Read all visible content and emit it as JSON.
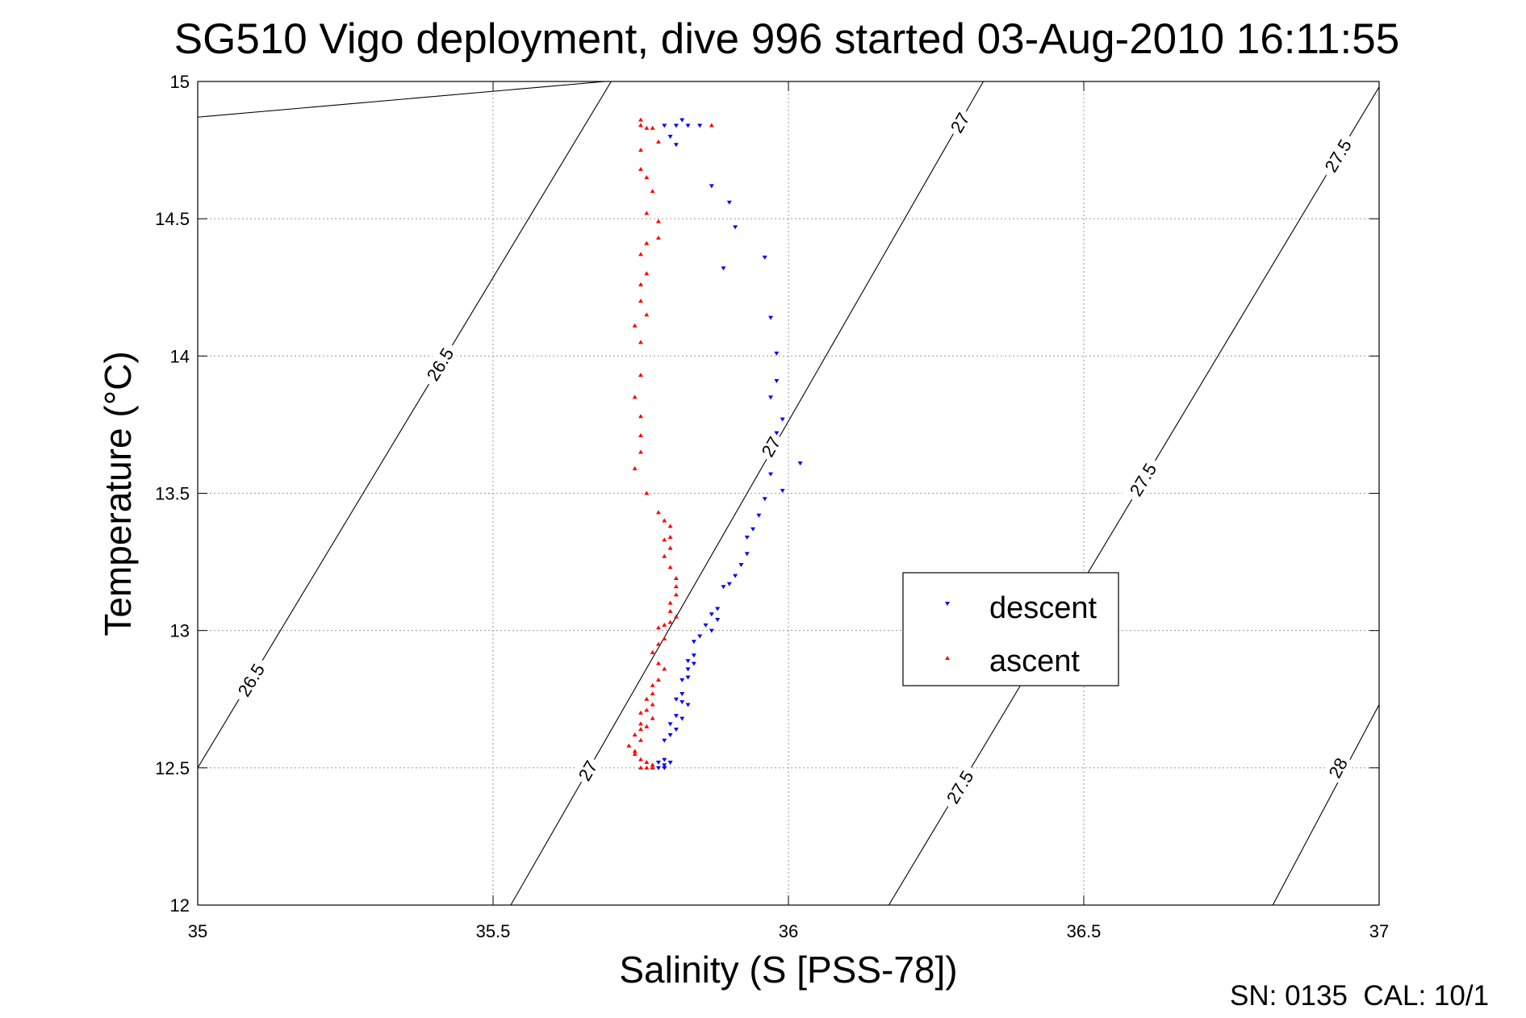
{
  "chart_data": {
    "type": "scatter",
    "title": "SG510 Vigo deployment, dive 996 started 03-Aug-2010 16:11:55",
    "xlabel": "Salinity (S [PSS-78])",
    "ylabel": "Temperature (°C)",
    "xlim": [
      35,
      37
    ],
    "ylim": [
      12,
      15
    ],
    "xticks": [
      35,
      35.5,
      36,
      36.5,
      37
    ],
    "xtick_labels": [
      "35",
      "35.5",
      "36",
      "36.5",
      "37"
    ],
    "yticks": [
      12,
      12.5,
      13,
      13.5,
      14,
      14.5,
      15
    ],
    "ytick_labels": [
      "12",
      "12.5",
      "13",
      "13.5",
      "14",
      "14.5",
      "15"
    ],
    "grid": true,
    "legend_position": "center-right",
    "footer": "SN: 0135  CAL: 10/1",
    "colors": {
      "descent": "#0000ff",
      "ascent": "#ff0000",
      "axis": "#000000",
      "grid": "#9a9a9a"
    },
    "contours": [
      {
        "label": "26.5",
        "x": [
          35,
          35.69
        ],
        "y": [
          14.87,
          15
        ],
        "labels_at": []
      },
      {
        "label": "26.5",
        "x": [
          35,
          35.7
        ],
        "y": [
          12.5,
          15
        ],
        "labels_at": [
          {
            "x": 35.41,
            "y": 13.97
          },
          {
            "x": 35.09,
            "y": 12.82
          }
        ]
      },
      {
        "label": "27",
        "x": [
          35.53,
          36.33
        ],
        "y": [
          12,
          15
        ],
        "labels_at": [
          {
            "x": 35.66,
            "y": 12.49
          },
          {
            "x": 35.97,
            "y": 13.67
          },
          {
            "x": 36.29,
            "y": 14.85
          }
        ]
      },
      {
        "label": "27.5",
        "x": [
          36.17,
          37
        ],
        "y": [
          12,
          14.98
        ],
        "labels_at": [
          {
            "x": 36.29,
            "y": 12.43
          },
          {
            "x": 36.6,
            "y": 13.55
          },
          {
            "x": 36.93,
            "y": 14.73
          }
        ]
      },
      {
        "label": "28",
        "x": [
          36.82,
          37
        ],
        "y": [
          12,
          12.73
        ],
        "labels_at": [
          {
            "x": 36.93,
            "y": 12.5
          }
        ]
      }
    ],
    "series": [
      {
        "name": "descent",
        "marker": "triangle-down",
        "x": [
          35.79,
          35.82,
          35.81,
          35.83,
          35.85,
          35.8,
          35.81,
          35.87,
          35.9,
          35.91,
          35.89,
          35.96,
          35.97,
          35.98,
          35.98,
          35.97,
          35.99,
          35.98,
          36.02,
          35.97,
          35.99,
          35.96,
          35.95,
          35.94,
          35.93,
          35.93,
          35.92,
          35.91,
          35.9,
          35.89,
          35.88,
          35.87,
          35.88,
          35.86,
          35.87,
          35.85,
          35.84,
          35.84,
          35.83,
          35.84,
          35.83,
          35.83,
          35.82,
          35.82,
          35.81,
          35.82,
          35.83,
          35.81,
          35.82,
          35.8,
          35.81,
          35.8,
          35.79,
          35.79,
          35.8,
          35.78,
          35.79,
          35.8,
          35.78,
          35.79
        ],
        "y": [
          14.84,
          14.86,
          14.84,
          14.84,
          14.84,
          14.8,
          14.77,
          14.62,
          14.56,
          14.47,
          14.32,
          14.36,
          14.14,
          14.01,
          13.91,
          13.85,
          13.77,
          13.72,
          13.61,
          13.57,
          13.51,
          13.48,
          13.42,
          13.37,
          13.34,
          13.28,
          13.24,
          13.2,
          13.17,
          13.16,
          13.08,
          13.06,
          13.04,
          13.02,
          13.0,
          12.98,
          12.96,
          12.91,
          12.89,
          12.88,
          12.86,
          12.83,
          12.82,
          12.77,
          12.75,
          12.74,
          12.73,
          12.69,
          12.68,
          12.66,
          12.64,
          12.62,
          12.6,
          12.53,
          12.52,
          12.52,
          12.51,
          12.52,
          12.5,
          12.5
        ]
      },
      {
        "name": "ascent",
        "marker": "triangle-up",
        "x": [
          35.87,
          35.75,
          35.75,
          35.76,
          35.77,
          35.78,
          35.75,
          35.75,
          35.76,
          35.77,
          35.76,
          35.78,
          35.78,
          35.76,
          35.75,
          35.76,
          35.75,
          35.75,
          35.76,
          35.74,
          35.75,
          35.75,
          35.74,
          35.75,
          35.75,
          35.75,
          35.74,
          35.76,
          35.78,
          35.79,
          35.8,
          35.8,
          35.79,
          35.8,
          35.79,
          35.8,
          35.81,
          35.81,
          35.81,
          35.8,
          35.8,
          35.81,
          35.8,
          35.79,
          35.78,
          35.79,
          35.78,
          35.77,
          35.78,
          35.79,
          35.78,
          35.77,
          35.77,
          35.76,
          35.77,
          35.76,
          35.75,
          35.77,
          35.75,
          35.76,
          35.75,
          35.74,
          35.75,
          35.73,
          35.74,
          35.74,
          35.75,
          35.76,
          35.77,
          35.77,
          35.76,
          35.75
        ],
        "y": [
          14.84,
          14.86,
          14.84,
          14.83,
          14.83,
          14.78,
          14.75,
          14.68,
          14.65,
          14.6,
          14.52,
          14.49,
          14.43,
          14.41,
          14.37,
          14.3,
          14.26,
          14.2,
          14.15,
          14.11,
          14.05,
          13.93,
          13.85,
          13.78,
          13.71,
          13.65,
          13.59,
          13.5,
          13.43,
          13.4,
          13.38,
          13.34,
          13.33,
          13.3,
          13.27,
          13.23,
          13.19,
          13.16,
          13.13,
          13.1,
          13.07,
          13.05,
          13.03,
          13.02,
          13.01,
          12.97,
          12.95,
          12.92,
          12.88,
          12.86,
          12.82,
          12.8,
          12.77,
          12.75,
          12.73,
          12.71,
          12.7,
          12.68,
          12.66,
          12.65,
          12.64,
          12.62,
          12.6,
          12.58,
          12.56,
          12.55,
          12.53,
          12.52,
          12.51,
          12.5,
          12.5,
          12.5
        ]
      }
    ]
  }
}
